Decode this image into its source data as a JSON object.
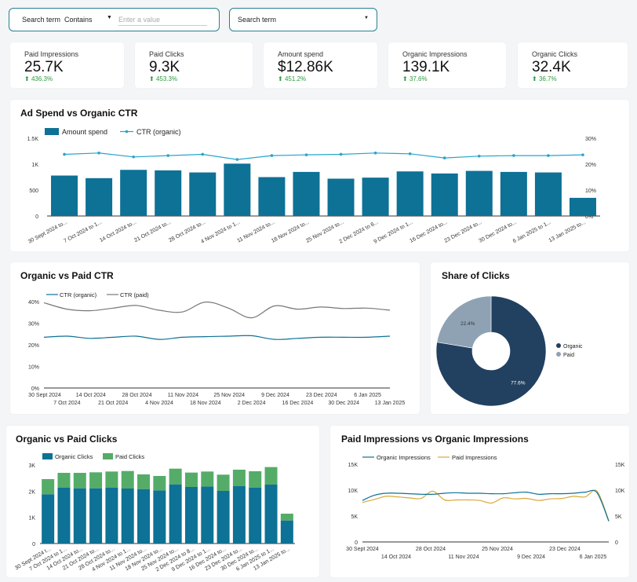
{
  "filters": {
    "search_label": "Search term",
    "match_value": "Contains",
    "value_placeholder": "Enter a value",
    "dropdown_label": "Search term"
  },
  "kpis": [
    {
      "label": "Paid Impressions",
      "value": "25.7K",
      "change": "436.3%"
    },
    {
      "label": "Paid Clicks",
      "value": "9.3K",
      "change": "453.3%"
    },
    {
      "label": "Amount spend",
      "value": "$12.86K",
      "change": "451.2%"
    },
    {
      "label": "Organic Impressions",
      "value": "139.1K",
      "change": "37.6%"
    },
    {
      "label": "Organic Clicks",
      "value": "32.4K",
      "change": "36.7%"
    }
  ],
  "colors": {
    "teal": "#0e7196",
    "light_teal": "#25a6cc",
    "gray_line": "#777777",
    "navy": "#22405f",
    "slate": "#8fa2b4",
    "green": "#55ac68",
    "gold": "#d9a93a",
    "kpi_up": "#2e9a3e"
  },
  "chart_data": [
    {
      "id": "adspend",
      "type": "bar",
      "title": "Ad Spend vs Organic CTR",
      "categories": [
        "30 Sept 2024 to...",
        "7 Oct 2024 to 1...",
        "14 Oct 2024 to...",
        "21 Oct 2024 to...",
        "28 Oct 2024 to...",
        "4 Nov 2024 to 1...",
        "11 Nov 2024 to...",
        "18 Nov 2024 to...",
        "25 Nov 2024 to...",
        "2 Dec 2024 to 8...",
        "9 Dec 2024 to 1...",
        "16 Dec 2024 to...",
        "23 Dec 2024 to...",
        "30 Dec 2024 to...",
        "6 Jan 2025 to 1...",
        "13 Jan 2025 to..."
      ],
      "series": [
        {
          "name": "Amount spend",
          "values": [
            780,
            730,
            890,
            880,
            840,
            1010,
            750,
            850,
            720,
            740,
            860,
            820,
            870,
            850,
            840,
            350
          ]
        },
        {
          "name": "CTR (organic)",
          "values": [
            23.8,
            24.3,
            22.8,
            23.3,
            23.8,
            21.8,
            23.3,
            23.6,
            23.8,
            24.3,
            24.0,
            22.4,
            23.1,
            23.3,
            23.3,
            23.6
          ]
        }
      ],
      "y_ticks": [
        "0",
        "500",
        "1K",
        "1.5K"
      ],
      "y2_ticks": [
        "0%",
        "10%",
        "20%",
        "30%"
      ],
      "ylim": [
        0,
        1500
      ],
      "y2lim": [
        0,
        30
      ]
    },
    {
      "id": "ctr",
      "type": "line",
      "title": "Organic vs Paid CTR",
      "series": [
        {
          "name": "CTR (organic)",
          "values": [
            23.5,
            24.0,
            23.0,
            23.5,
            24.0,
            22.5,
            23.5,
            23.8,
            24.0,
            24.2,
            22.5,
            23.0,
            23.5,
            23.5,
            23.5,
            24.0
          ]
        },
        {
          "name": "CTR (paid)",
          "values": [
            39.5,
            36.5,
            35.8,
            37.0,
            38.2,
            36.0,
            35.2,
            39.8,
            37.0,
            32.5,
            38.0,
            36.5,
            37.5,
            36.8,
            37.0,
            36.0
          ]
        }
      ],
      "x_top_labels": [
        "30 Sept 2024",
        "14 Oct 2024",
        "28 Oct 2024",
        "11 Nov 2024",
        "25 Nov 2024",
        "9 Dec 2024",
        "23 Dec 2024",
        "6 Jan 2025"
      ],
      "x_bottom_labels": [
        "7 Oct 2024",
        "21 Oct 2024",
        "4 Nov 2024",
        "18 Nov 2024",
        "2 Dec 2024",
        "16 Dec 2024",
        "30 Dec 2024",
        "13 Jan 2025"
      ],
      "y_ticks": [
        "0%",
        "10%",
        "20%",
        "30%",
        "40%"
      ],
      "ylim": [
        0,
        40
      ]
    },
    {
      "id": "share",
      "type": "pie",
      "title": "Share of Clicks",
      "slices": [
        {
          "name": "Organic",
          "value": 77.6,
          "label": "77.6%"
        },
        {
          "name": "Paid",
          "value": 22.4,
          "label": "22.4%"
        }
      ]
    },
    {
      "id": "clicks",
      "type": "bar",
      "title": "Organic vs Paid Clicks",
      "categories": [
        "30 Sept 2024 t...",
        "7 Oct 2024 to 1...",
        "14 Oct 2024 to...",
        "21 Oct 2024 to...",
        "28 Oct 2024 to...",
        "4 Nov 2024 to 1...",
        "11 Nov 2024 to...",
        "18 Nov 2024 to...",
        "25 Nov 2024 to...",
        "2 Dec 2024 to 8...",
        "9 Dec 2024 to 1...",
        "16 Dec 2024 to...",
        "23 Dec 2024 to...",
        "30 Dec 2024 to...",
        "6 Jan 2025 to 1...",
        "13 Jan 2025 to..."
      ],
      "series": [
        {
          "name": "Organic Clicks",
          "values": [
            1880,
            2130,
            2110,
            2110,
            2140,
            2100,
            2080,
            2030,
            2260,
            2160,
            2180,
            2010,
            2190,
            2130,
            2250,
            880
          ]
        },
        {
          "name": "Paid Clicks",
          "values": [
            580,
            570,
            590,
            610,
            610,
            670,
            560,
            550,
            600,
            550,
            570,
            620,
            630,
            630,
            670,
            260
          ]
        }
      ],
      "y_ticks": [
        "0",
        "1K",
        "2K",
        "3K"
      ],
      "ylim": [
        0,
        3000
      ]
    },
    {
      "id": "impr",
      "type": "line",
      "title": "Paid Impressions vs Organic Impressions",
      "series": [
        {
          "name": "Organic Impressions",
          "values": [
            8000,
            9000,
            9400,
            9400,
            9300,
            9200,
            9200,
            9400,
            9500,
            9400,
            9400,
            9300,
            9300,
            9500,
            9600,
            9200,
            9300,
            9300,
            9400,
            9600,
            9500,
            4000
          ]
        },
        {
          "name": "Paid Impressions",
          "values": [
            7600,
            8200,
            8800,
            8700,
            8500,
            8400,
            9800,
            8100,
            8100,
            8100,
            8000,
            7500,
            8500,
            8300,
            8400,
            8000,
            8300,
            8400,
            8800,
            8700,
            9800,
            4100
          ]
        }
      ],
      "x_top_labels": [
        "30 Sept 2024",
        "28 Oct 2024",
        "25 Nov 2024",
        "23 Dec 2024"
      ],
      "x_bottom_labels": [
        "14 Oct 2024",
        "11 Nov 2024",
        "9 Dec 2024",
        "6 Jan 2025"
      ],
      "y_ticks": [
        "0",
        "5K",
        "10K",
        "15K"
      ],
      "y2_ticks": [
        "0",
        "5K",
        "10K",
        "15K"
      ],
      "ylim": [
        0,
        15000
      ]
    }
  ]
}
